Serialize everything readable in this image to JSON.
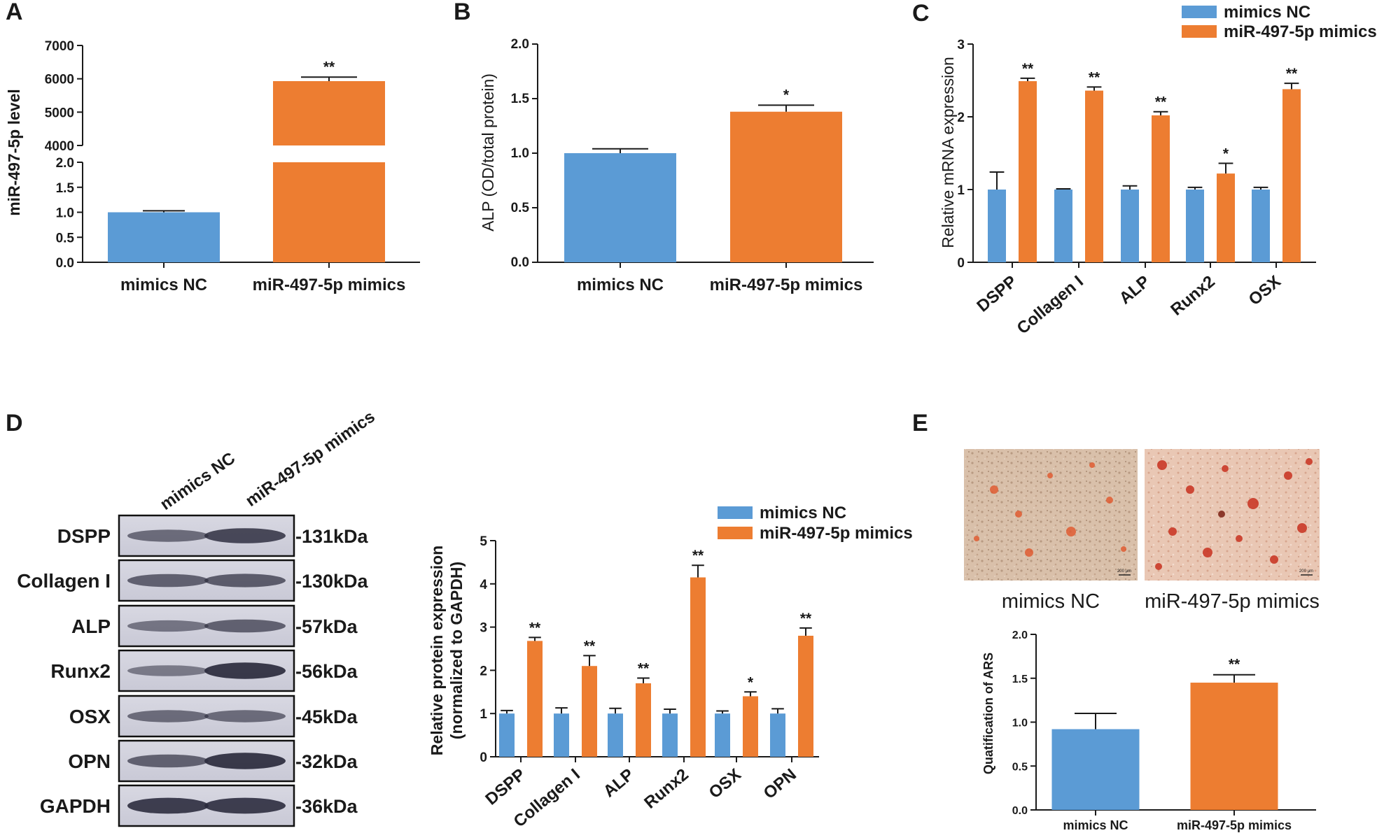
{
  "colors": {
    "nc": "#5b9bd5",
    "mimic": "#ed7d31",
    "axis": "#1a1a1a"
  },
  "legend": {
    "nc": "mimics NC",
    "mimic": "miR-497-5p mimics"
  },
  "panels": {
    "A": "A",
    "B": "B",
    "C": "C",
    "D": "D",
    "E": "E"
  },
  "chart_data": [
    {
      "id": "A",
      "type": "bar",
      "title": "",
      "ylabel": "miR-497-5p level",
      "categories": [
        "mimics NC",
        "miR-497-5p mimics"
      ],
      "values": [
        1.0,
        5930
      ],
      "errors": [
        0.03,
        120
      ],
      "sig": [
        "",
        "**"
      ],
      "axis_break": {
        "lower": [
          0,
          2.0
        ],
        "upper": [
          4000,
          7000
        ]
      },
      "lower_ticks": [
        "0.0",
        "0.5",
        "1.0",
        "1.5",
        "2.0"
      ],
      "upper_ticks": [
        "4000",
        "5000",
        "6000",
        "7000"
      ]
    },
    {
      "id": "B",
      "type": "bar",
      "ylabel": "ALP (OD/total protein)",
      "categories": [
        "mimics NC",
        "miR-497-5p mimics"
      ],
      "values": [
        1.0,
        1.38
      ],
      "errors": [
        0.04,
        0.06
      ],
      "sig": [
        "",
        "*"
      ],
      "ylim": [
        0,
        2.0
      ],
      "ticks": [
        "0.0",
        "0.5",
        "1.0",
        "1.5",
        "2.0"
      ]
    },
    {
      "id": "C",
      "type": "bar",
      "ylabel": "Relative mRNA expression",
      "categories": [
        "DSPP",
        "Collagen I",
        "ALP",
        "Runx2",
        "OSX"
      ],
      "series": [
        {
          "name": "mimics NC",
          "values": [
            1.0,
            1.0,
            1.0,
            1.0,
            1.0
          ],
          "errors": [
            0.24,
            0.01,
            0.05,
            0.03,
            0.03
          ]
        },
        {
          "name": "miR-497-5p mimics",
          "values": [
            2.49,
            2.36,
            2.02,
            1.22,
            2.38
          ],
          "errors": [
            0.04,
            0.05,
            0.05,
            0.14,
            0.08
          ]
        }
      ],
      "sig": [
        "**",
        "**",
        "**",
        "*",
        "**"
      ],
      "ylim": [
        0,
        3
      ],
      "ticks": [
        "0",
        "1",
        "2",
        "3"
      ]
    },
    {
      "id": "D",
      "type": "bar",
      "ylabel": "Relative protein expression",
      "ylabel2": "(normalized to GAPDH)",
      "categories": [
        "DSPP",
        "Collagen I",
        "ALP",
        "Runx2",
        "OSX",
        "OPN"
      ],
      "series": [
        {
          "name": "mimics NC",
          "values": [
            1.0,
            1.0,
            1.0,
            1.0,
            1.0,
            1.0
          ],
          "errors": [
            0.07,
            0.13,
            0.12,
            0.1,
            0.06,
            0.11
          ]
        },
        {
          "name": "miR-497-5p mimics",
          "values": [
            2.68,
            2.1,
            1.7,
            4.15,
            1.4,
            2.8
          ],
          "errors": [
            0.08,
            0.24,
            0.12,
            0.28,
            0.1,
            0.18
          ]
        }
      ],
      "sig": [
        "**",
        "**",
        "**",
        "**",
        "*",
        "**"
      ],
      "ylim": [
        0,
        5
      ],
      "ticks": [
        "0",
        "1",
        "2",
        "3",
        "4",
        "5"
      ]
    },
    {
      "id": "E",
      "type": "bar",
      "ylabel": "Quatification of ARS",
      "categories": [
        "mimics NC",
        "miR-497-5p mimics"
      ],
      "values": [
        0.92,
        1.45
      ],
      "errors": [
        0.18,
        0.09
      ],
      "sig": [
        "",
        "**"
      ],
      "ylim": [
        0,
        2.0
      ],
      "ticks": [
        "0.0",
        "0.5",
        "1.0",
        "1.5",
        "2.0"
      ]
    }
  ],
  "western_blot": {
    "lane_labels": [
      "mimics NC",
      "miR-497-5p mimics"
    ],
    "proteins": [
      "DSPP",
      "Collagen I",
      "ALP",
      "Runx2",
      "OSX",
      "OPN",
      "GAPDH"
    ],
    "sizes": [
      "-131kDa",
      "-130kDa",
      "-57kDa",
      "-56kDa",
      "-45kDa",
      "-32kDa",
      "-36kDa"
    ]
  },
  "ars_images": {
    "labels": [
      "mimics NC",
      "miR-497-5p mimics"
    ],
    "scale": "200 μm"
  }
}
